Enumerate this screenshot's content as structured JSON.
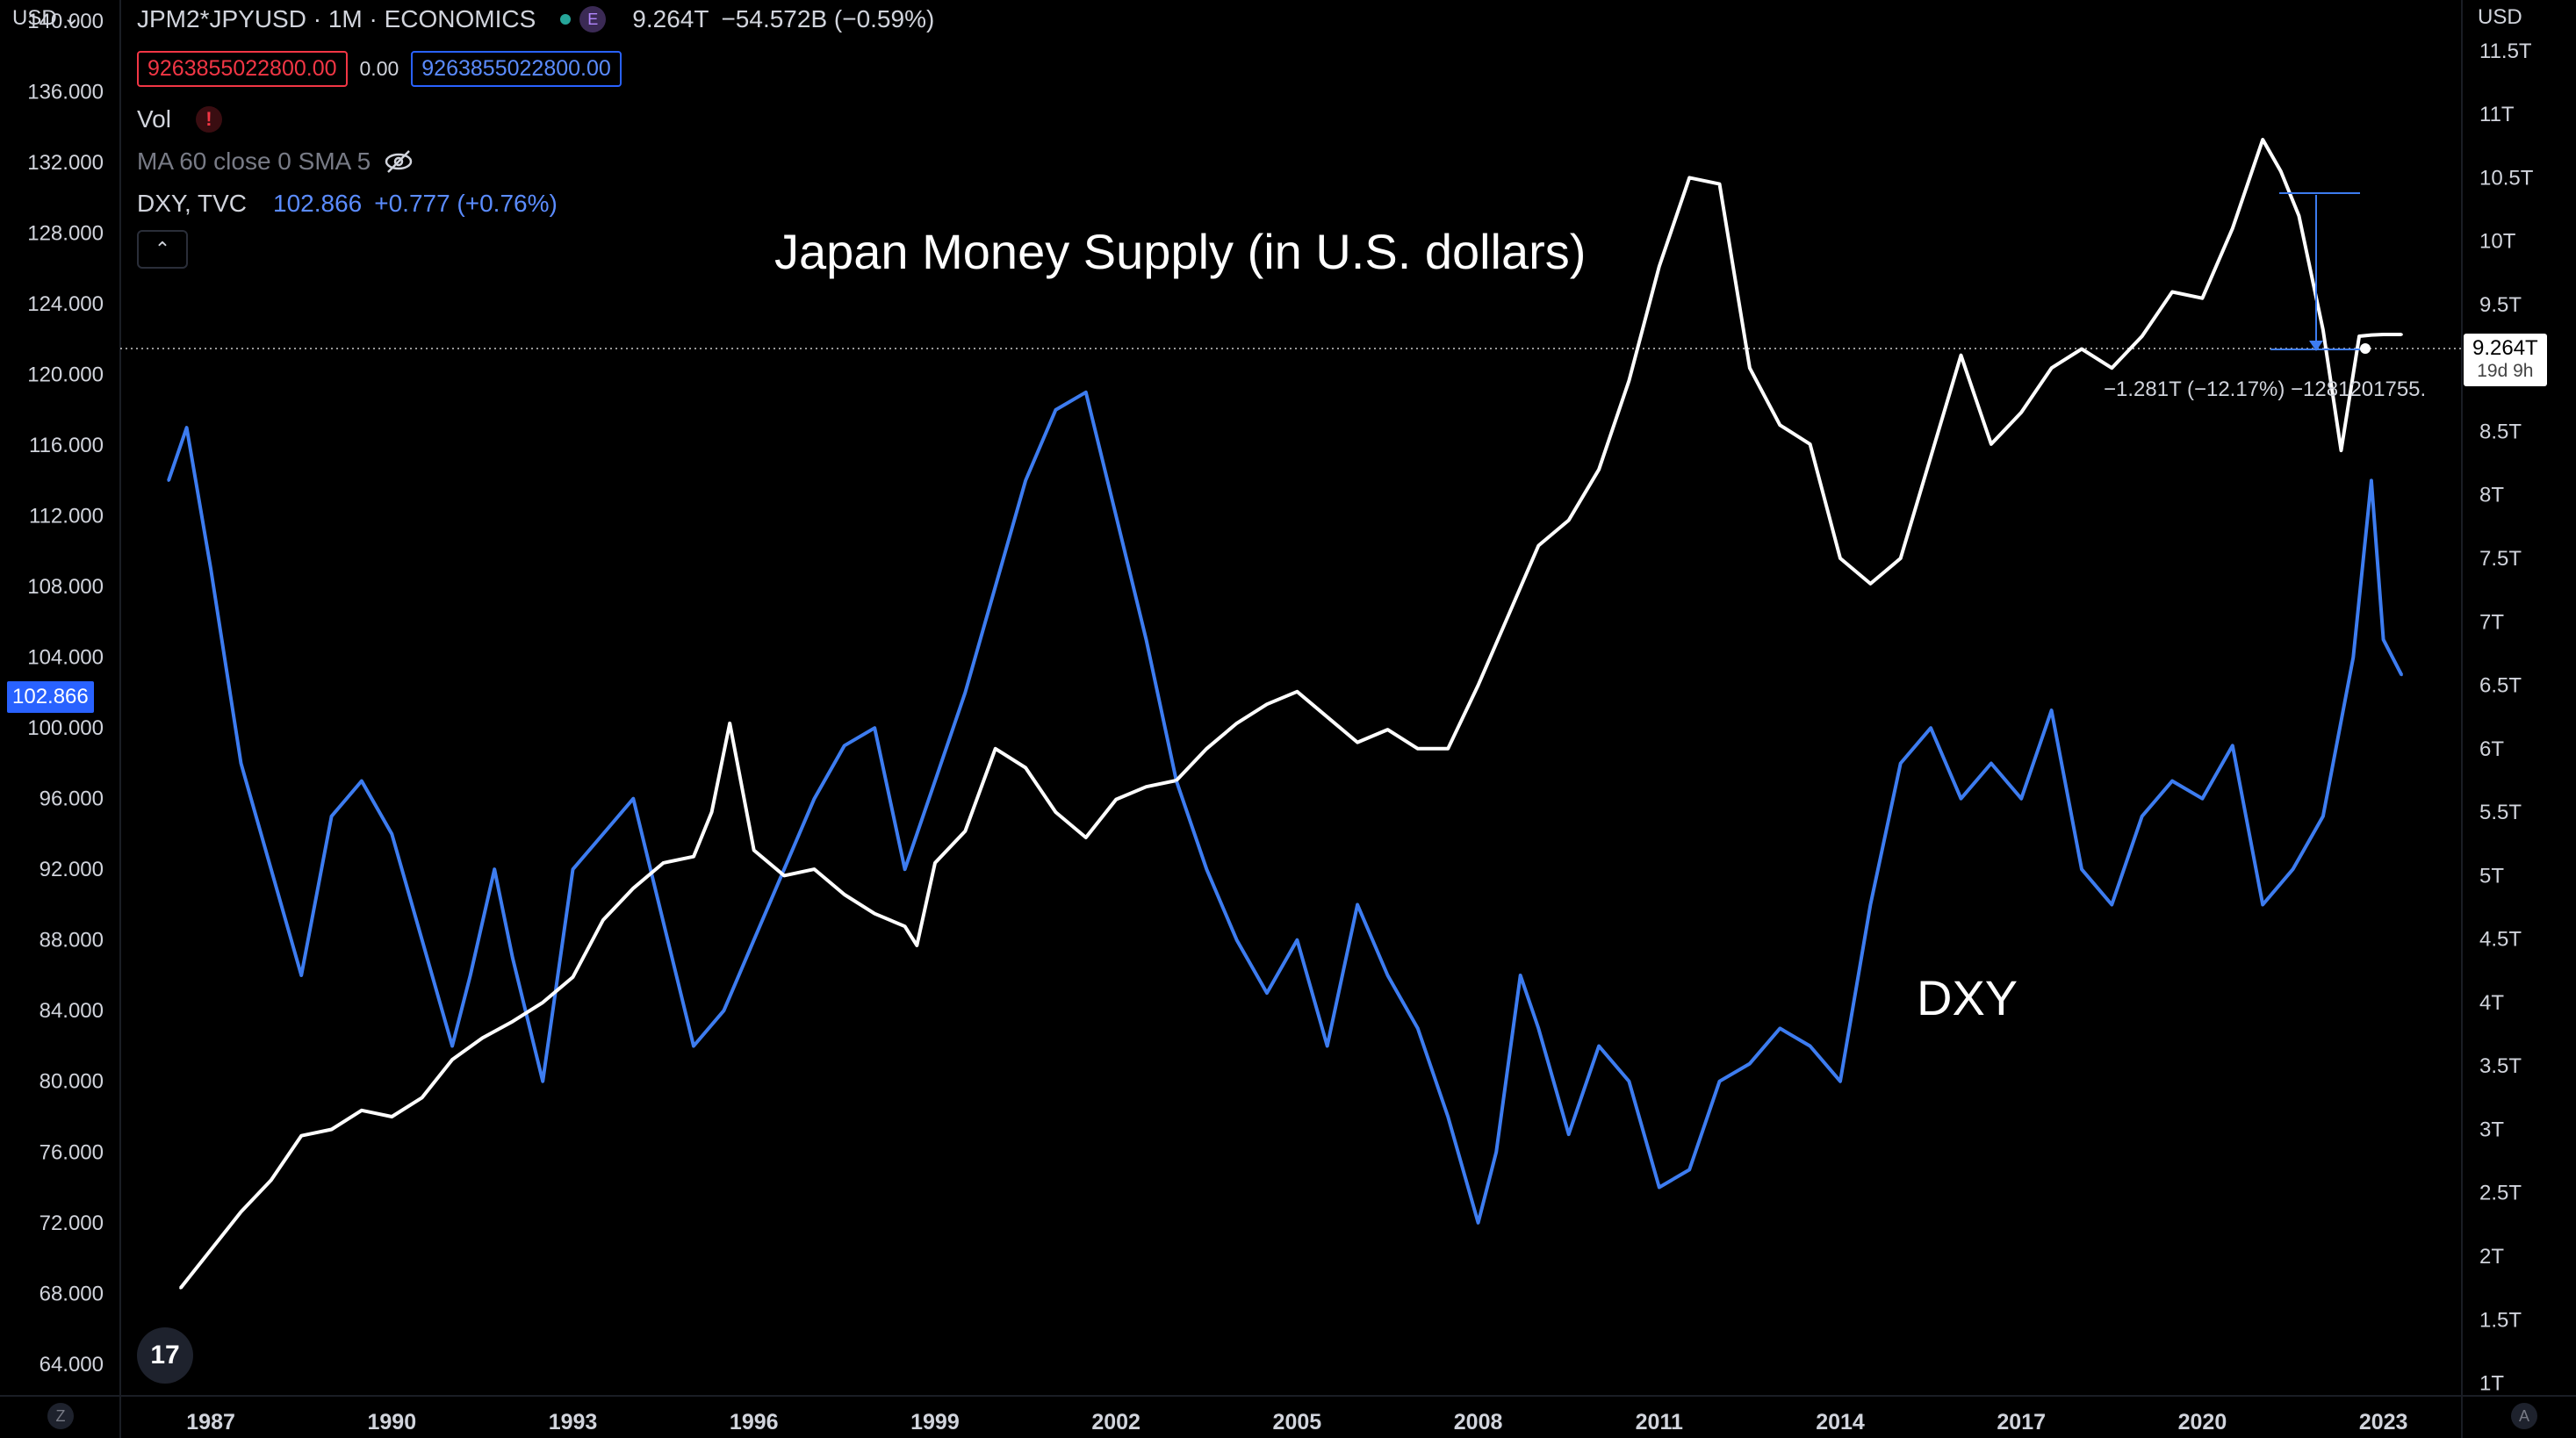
{
  "header": {
    "symbol_title": "JPM2*JPYUSD · 1M · ECONOMICS",
    "exchange_badge": "E",
    "last_value": "9.264T",
    "change": "−54.572B (−0.59%)",
    "sell_box": "9263855022800.00",
    "spread": "0.00",
    "buy_box": "9263855022800.00",
    "vol_label": "Vol",
    "ma_label": "MA 60 close 0 SMA 5",
    "dxy_label": "DXY, TVC",
    "dxy_value": "102.866",
    "dxy_change": "+0.777 (+0.76%)",
    "collapse_glyph": "⌃"
  },
  "axes": {
    "currency_left": "USD",
    "currency_right": "USD",
    "left_ticks": [
      "140.000",
      "136.000",
      "132.000",
      "128.000",
      "124.000",
      "120.000",
      "116.000",
      "112.000",
      "108.000",
      "104.000",
      "100.000",
      "96.000",
      "92.000",
      "88.000",
      "84.000",
      "80.000",
      "76.000",
      "72.000",
      "68.000",
      "64.000"
    ],
    "right_ticks": [
      "11.5T",
      "11T",
      "10.5T",
      "10T",
      "9.5T",
      "9T",
      "8.5T",
      "8T",
      "7.5T",
      "7T",
      "6.5T",
      "6T",
      "5.5T",
      "5T",
      "4.5T",
      "4T",
      "3.5T",
      "3T",
      "2.5T",
      "2T",
      "1.5T",
      "1T"
    ],
    "x_ticks": [
      "1987",
      "1990",
      "1993",
      "1996",
      "1999",
      "2002",
      "2005",
      "2008",
      "2011",
      "2014",
      "2017",
      "2020",
      "2023"
    ],
    "left_price_tag": "102.866",
    "right_price_tag": "9.264T",
    "right_price_countdown": "19d 9h",
    "corner_left": "Z",
    "corner_right": "A"
  },
  "annotations": {
    "title": "Japan Money Supply (in U.S. dollars)",
    "dxy": "DXY",
    "measure": "−1.281T (−12.17%) −1281201755."
  },
  "colors": {
    "money_supply": "#ffffff",
    "dxy": "#3d7cf0",
    "background": "#000000"
  },
  "chart_data": {
    "type": "line",
    "title": "Japan Money Supply (in U.S. dollars)",
    "x_range": [
      1985.5,
      2024.3
    ],
    "series": [
      {
        "name": "JPM2*JPYUSD (right axis, trillions USD)",
        "axis": "right",
        "ylim": [
          0.9,
          11.9
        ],
        "x": [
          1986.5,
          1987.0,
          1987.5,
          1988.0,
          1988.5,
          1989.0,
          1989.5,
          1990.0,
          1990.5,
          1991.0,
          1991.5,
          1992.0,
          1992.5,
          1993.0,
          1993.5,
          1994.0,
          1994.5,
          1995.0,
          1995.3,
          1995.6,
          1996.0,
          1996.5,
          1997.0,
          1997.5,
          1998.0,
          1998.5,
          1998.7,
          1999.0,
          1999.5,
          2000.0,
          2000.5,
          2001.0,
          2001.5,
          2002.0,
          2002.5,
          2003.0,
          2003.5,
          2004.0,
          2004.5,
          2005.0,
          2005.5,
          2006.0,
          2006.5,
          2007.0,
          2007.5,
          2008.0,
          2008.5,
          2009.0,
          2009.5,
          2010.0,
          2010.5,
          2011.0,
          2011.5,
          2012.0,
          2012.5,
          2013.0,
          2013.5,
          2014.0,
          2014.5,
          2015.0,
          2015.5,
          2016.0,
          2016.5,
          2017.0,
          2017.5,
          2018.0,
          2018.5,
          2019.0,
          2019.5,
          2020.0,
          2020.5,
          2021.0,
          2021.3,
          2021.6,
          2022.0,
          2022.3,
          2022.6,
          2022.8,
          2023.0,
          2023.3
        ],
        "values": [
          1.75,
          2.05,
          2.35,
          2.6,
          2.95,
          3.0,
          3.15,
          3.1,
          3.25,
          3.55,
          3.72,
          3.85,
          4.0,
          4.2,
          4.65,
          4.9,
          5.1,
          5.15,
          5.5,
          6.2,
          5.2,
          5.0,
          5.05,
          4.85,
          4.7,
          4.6,
          4.45,
          5.1,
          5.35,
          6.0,
          5.85,
          5.5,
          5.3,
          5.6,
          5.7,
          5.75,
          6.0,
          6.2,
          6.35,
          6.45,
          6.25,
          6.05,
          6.15,
          6.0,
          6.0,
          6.5,
          7.05,
          7.6,
          7.8,
          8.2,
          8.9,
          9.8,
          10.5,
          10.45,
          9.0,
          8.55,
          8.4,
          7.5,
          7.3,
          7.5,
          8.3,
          9.1,
          8.4,
          8.65,
          9.0,
          9.15,
          9.0,
          9.25,
          9.6,
          9.55,
          10.1,
          10.8,
          10.55,
          10.2,
          9.3,
          8.35,
          9.25,
          9.26,
          9.264,
          9.264
        ]
      },
      {
        "name": "DXY, TVC (left axis)",
        "axis": "left",
        "ylim": [
          62.2,
          141.2
        ],
        "x": [
          1986.3,
          1986.6,
          1987.0,
          1987.5,
          1988.0,
          1988.5,
          1989.0,
          1989.5,
          1990.0,
          1990.5,
          1991.0,
          1991.3,
          1991.7,
          1992.0,
          1992.5,
          1993.0,
          1993.5,
          1994.0,
          1994.5,
          1995.0,
          1995.5,
          1996.0,
          1996.5,
          1997.0,
          1997.5,
          1998.0,
          1998.5,
          1999.0,
          1999.5,
          2000.0,
          2000.5,
          2001.0,
          2001.5,
          2002.0,
          2002.5,
          2003.0,
          2003.5,
          2004.0,
          2004.5,
          2005.0,
          2005.5,
          2006.0,
          2006.5,
          2007.0,
          2007.5,
          2008.0,
          2008.3,
          2008.7,
          2009.0,
          2009.5,
          2010.0,
          2010.5,
          2011.0,
          2011.5,
          2012.0,
          2012.5,
          2013.0,
          2013.5,
          2014.0,
          2014.5,
          2015.0,
          2015.5,
          2016.0,
          2016.5,
          2017.0,
          2017.5,
          2018.0,
          2018.5,
          2019.0,
          2019.5,
          2020.0,
          2020.5,
          2021.0,
          2021.5,
          2022.0,
          2022.5,
          2022.8,
          2023.0,
          2023.3
        ],
        "values": [
          114,
          117,
          109,
          98,
          92,
          86,
          95,
          97,
          94,
          88,
          82,
          86,
          92,
          87,
          80,
          92,
          94,
          96,
          89,
          82,
          84,
          88,
          92,
          96,
          99,
          100,
          92,
          97,
          102,
          108,
          114,
          118,
          119,
          112,
          105,
          97,
          92,
          88,
          85,
          88,
          82,
          90,
          86,
          83,
          78,
          72,
          76,
          86,
          83,
          77,
          82,
          80,
          74,
          75,
          80,
          81,
          83,
          82,
          80,
          90,
          98,
          100,
          96,
          98,
          96,
          101,
          92,
          90,
          95,
          97,
          96,
          99,
          90,
          92,
          95,
          104,
          114,
          105,
          103
        ]
      }
    ]
  }
}
